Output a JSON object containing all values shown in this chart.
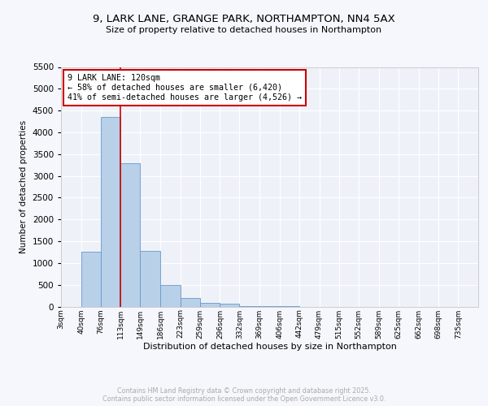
{
  "title1": "9, LARK LANE, GRANGE PARK, NORTHAMPTON, NN4 5AX",
  "title2": "Size of property relative to detached houses in Northampton",
  "xlabel": "Distribution of detached houses by size in Northampton",
  "ylabel": "Number of detached properties",
  "bar_color": "#b8d0e8",
  "bar_edge_color": "#6699cc",
  "background_color": "#eef2f8",
  "grid_color": "#ffffff",
  "annotation_text": "9 LARK LANE: 120sqm\n← 58% of detached houses are smaller (6,420)\n41% of semi-detached houses are larger (4,526) →",
  "annotation_box_color": "#cc0000",
  "vline_x": 113,
  "vline_color": "#cc0000",
  "categories": [
    "3sqm",
    "40sqm",
    "76sqm",
    "113sqm",
    "149sqm",
    "186sqm",
    "223sqm",
    "259sqm",
    "296sqm",
    "332sqm",
    "369sqm",
    "406sqm",
    "442sqm",
    "479sqm",
    "515sqm",
    "552sqm",
    "589sqm",
    "625sqm",
    "662sqm",
    "698sqm",
    "735sqm"
  ],
  "values": [
    0,
    1250,
    4350,
    3300,
    1280,
    500,
    200,
    90,
    60,
    10,
    5,
    3,
    0,
    0,
    0,
    0,
    0,
    0,
    0,
    0,
    0
  ],
  "bin_edges": [
    3,
    40,
    76,
    113,
    149,
    186,
    223,
    259,
    296,
    332,
    369,
    406,
    442,
    479,
    515,
    552,
    589,
    625,
    662,
    698,
    735
  ],
  "bin_width": 37,
  "ylim": [
    0,
    5500
  ],
  "yticks": [
    0,
    500,
    1000,
    1500,
    2000,
    2500,
    3000,
    3500,
    4000,
    4500,
    5000,
    5500
  ],
  "footer_text": "Contains HM Land Registry data © Crown copyright and database right 2025.\nContains public sector information licensed under the Open Government Licence v3.0.",
  "footer_color": "#aaaaaa",
  "fig_bg": "#f5f7fc"
}
